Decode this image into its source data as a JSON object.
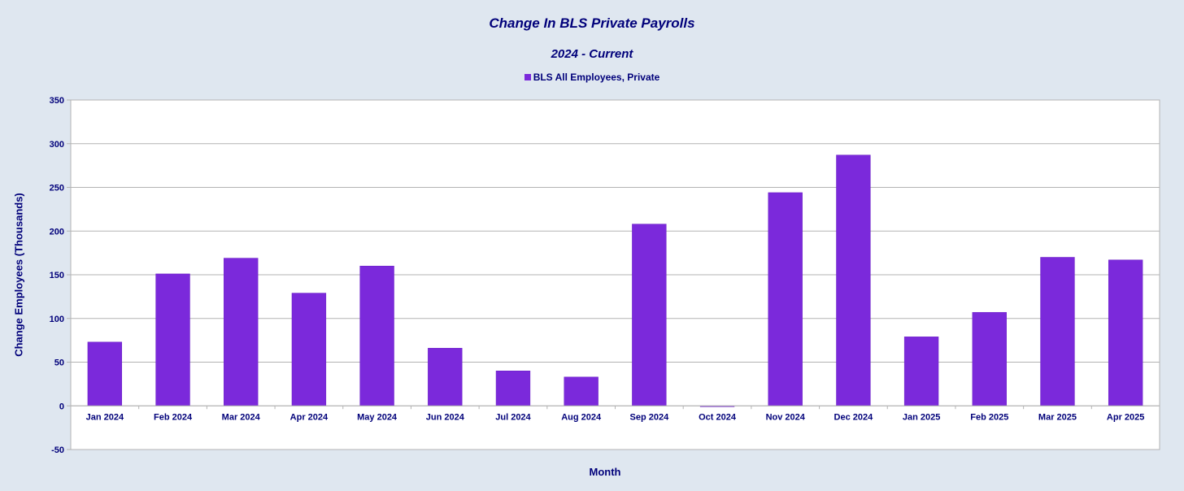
{
  "chart_data": {
    "type": "bar",
    "title": "Change In BLS Private Payrolls",
    "subtitle": "2024 - Current",
    "xlabel": "Month",
    "ylabel": "Change Employees (Thousands)",
    "ylim": [
      -50,
      350
    ],
    "yticks": [
      "350",
      "300",
      "250",
      "200",
      "150",
      "100",
      "50",
      "0",
      "-50"
    ],
    "grid": true,
    "legend_position": "top-center",
    "categories": [
      "Jan 2024",
      "Feb 2024",
      "Mar 2024",
      "Apr 2024",
      "May 2024",
      "Jun 2024",
      "Jul 2024",
      "Aug 2024",
      "Sep 2024",
      "Oct 2024",
      "Nov 2024",
      "Dec 2024",
      "Jan 2025",
      "Feb 2025",
      "Mar 2025",
      "Apr 2025"
    ],
    "series": [
      {
        "name": "BLS All Employees, Private",
        "color": "#7b29db",
        "values": [
          73,
          151,
          169,
          129,
          160,
          66,
          40,
          33,
          208,
          -1,
          244,
          287,
          79,
          107,
          170,
          167
        ]
      }
    ]
  }
}
